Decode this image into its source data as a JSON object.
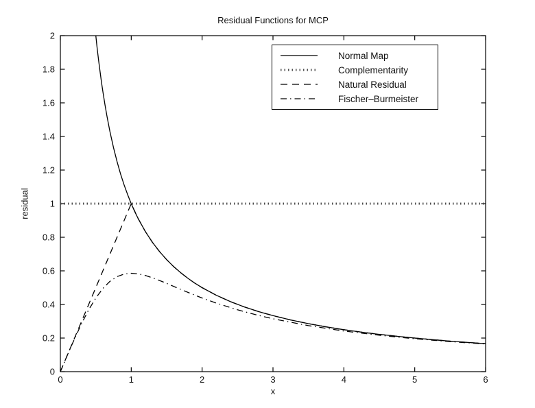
{
  "figure": {
    "title": "Residual Functions for MCP",
    "xlabel": "x",
    "ylabel": "residual"
  },
  "chart_data": {
    "type": "line",
    "title": "Residual Functions for MCP",
    "xlabel": "x",
    "ylabel": "residual",
    "xlim": [
      0,
      6
    ],
    "ylim": [
      0,
      2
    ],
    "grid": false,
    "xticks": {
      "values": [
        0,
        1,
        2,
        3,
        4,
        5,
        6
      ],
      "labels": [
        "0",
        "1",
        "2",
        "3",
        "4",
        "5",
        "6"
      ]
    },
    "yticks": {
      "values": [
        0,
        0.2,
        0.4,
        0.6,
        0.8,
        1,
        1.2,
        1.4,
        1.6,
        1.8,
        2
      ],
      "labels": [
        "0",
        "0.2",
        "0.4",
        "0.6",
        "0.8",
        "1",
        "1.2",
        "1.4",
        "1.6",
        "1.8",
        "2"
      ]
    },
    "legend": {
      "position": "inside-upper-right"
    },
    "axis_color": "#000000",
    "series": [
      {
        "id": "complementarity",
        "name": "Complementarity",
        "line_style": "dotted",
        "color": "#4a4a4a",
        "points": [
          [
            0,
            1
          ],
          [
            6,
            1
          ]
        ]
      },
      {
        "id": "natural-residual",
        "name": "Natural Residual",
        "line_style": "dashed",
        "color": "#000000",
        "points": [
          [
            0,
            0
          ],
          [
            1,
            1
          ],
          [
            1.1,
            0.90909
          ],
          [
            1.2,
            0.83333
          ],
          [
            1.3,
            0.76923
          ],
          [
            1.4,
            0.71429
          ],
          [
            1.5,
            0.66667
          ],
          [
            1.6,
            0.625
          ],
          [
            1.7,
            0.58824
          ],
          [
            1.8,
            0.55556
          ],
          [
            1.9,
            0.52632
          ],
          [
            2,
            0.5
          ],
          [
            2.2,
            0.45455
          ],
          [
            2.4,
            0.41667
          ],
          [
            2.6,
            0.38462
          ],
          [
            2.8,
            0.35714
          ],
          [
            3,
            0.33333
          ],
          [
            3.25,
            0.30769
          ],
          [
            3.5,
            0.28571
          ],
          [
            3.75,
            0.26667
          ],
          [
            4,
            0.25
          ],
          [
            4.25,
            0.23529
          ],
          [
            4.5,
            0.22222
          ],
          [
            4.75,
            0.21053
          ],
          [
            5,
            0.2
          ],
          [
            5.25,
            0.19048
          ],
          [
            5.5,
            0.18182
          ],
          [
            5.75,
            0.17391
          ],
          [
            6,
            0.16667
          ]
        ]
      },
      {
        "id": "fischer-burmeister",
        "name": "Fischer–Burmeister",
        "line_style": "dashdot",
        "color": "#000000",
        "points": [
          [
            0,
            0
          ],
          [
            0.05,
            0.04994
          ],
          [
            0.1,
            0.0995
          ],
          [
            0.2,
            0.196
          ],
          [
            0.3,
            0.28668
          ],
          [
            0.4,
            0.3682
          ],
          [
            0.5,
            0.43845
          ],
          [
            0.6,
            0.49529
          ],
          [
            0.7,
            0.53771
          ],
          [
            0.8,
            0.56591
          ],
          [
            0.9,
            0.58123
          ],
          [
            1,
            0.58579
          ],
          [
            1.1,
            0.58205
          ],
          [
            1.2,
            0.57235
          ],
          [
            1.3,
            0.55869
          ],
          [
            1.4,
            0.54261
          ],
          [
            1.5,
            0.52519
          ],
          [
            1.6,
            0.50725
          ],
          [
            1.8,
            0.47178
          ],
          [
            2,
            0.43845
          ],
          [
            2.2,
            0.40809
          ],
          [
            2.5,
            0.3682
          ],
          [
            2.75,
            0.3397
          ],
          [
            3,
            0.31487
          ],
          [
            3.5,
            0.27407
          ],
          [
            4,
            0.24219
          ],
          [
            4.5,
            0.21674
          ],
          [
            5,
            0.196
          ],
          [
            5.5,
            0.17881
          ],
          [
            6,
            0.16435
          ]
        ]
      },
      {
        "id": "normal-map",
        "name": "Normal Map",
        "line_style": "solid",
        "color": "#000000",
        "points": [
          [
            0.5,
            2
          ],
          [
            0.52,
            1.92308
          ],
          [
            0.54,
            1.85185
          ],
          [
            0.56,
            1.78571
          ],
          [
            0.58,
            1.72414
          ],
          [
            0.6,
            1.66667
          ],
          [
            0.63,
            1.5873
          ],
          [
            0.66,
            1.51515
          ],
          [
            0.7,
            1.42857
          ],
          [
            0.75,
            1.33333
          ],
          [
            0.8,
            1.25
          ],
          [
            0.85,
            1.17647
          ],
          [
            0.9,
            1.11111
          ],
          [
            0.95,
            1.05263
          ],
          [
            1,
            1
          ],
          [
            1.05,
            0.95238
          ],
          [
            1.1,
            0.90909
          ],
          [
            1.2,
            0.83333
          ],
          [
            1.3,
            0.76923
          ],
          [
            1.4,
            0.71429
          ],
          [
            1.5,
            0.66667
          ],
          [
            1.6,
            0.625
          ],
          [
            1.7,
            0.58824
          ],
          [
            1.8,
            0.55556
          ],
          [
            1.9,
            0.52632
          ],
          [
            2,
            0.5
          ],
          [
            2.2,
            0.45455
          ],
          [
            2.4,
            0.41667
          ],
          [
            2.6,
            0.38462
          ],
          [
            2.8,
            0.35714
          ],
          [
            3,
            0.33333
          ],
          [
            3.25,
            0.30769
          ],
          [
            3.5,
            0.28571
          ],
          [
            3.75,
            0.26667
          ],
          [
            4,
            0.25
          ],
          [
            4.25,
            0.23529
          ],
          [
            4.5,
            0.22222
          ],
          [
            4.75,
            0.21053
          ],
          [
            5,
            0.2
          ],
          [
            5.25,
            0.19048
          ],
          [
            5.5,
            0.18182
          ],
          [
            5.75,
            0.17391
          ],
          [
            6,
            0.16667
          ]
        ]
      }
    ],
    "legend_order": [
      "normal-map",
      "complementarity",
      "natural-residual",
      "fischer-burmeister"
    ]
  }
}
